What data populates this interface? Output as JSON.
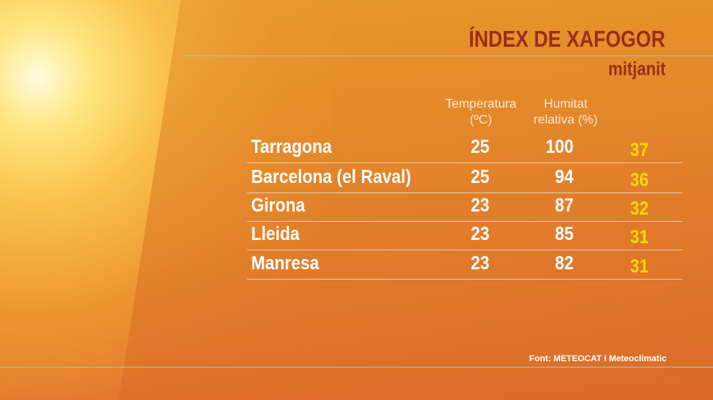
{
  "header": {
    "title": "ÍNDEX DE XAFOGOR",
    "subtitle": "mitjanit"
  },
  "table": {
    "columns": [
      "Temperatura (ºC)",
      "Humitat relativa (%)"
    ],
    "rows": [
      [
        "Tarragona",
        25,
        100,
        37
      ],
      [
        "Barcelona (el Raval)",
        25,
        94,
        36
      ],
      [
        "Girona",
        23,
        87,
        32
      ],
      [
        "Lleida",
        23,
        85,
        31
      ],
      [
        "Manresa",
        23,
        82,
        31
      ]
    ]
  },
  "footer": {
    "source": "Font: METEOCAT i Meteoclimatic"
  }
}
